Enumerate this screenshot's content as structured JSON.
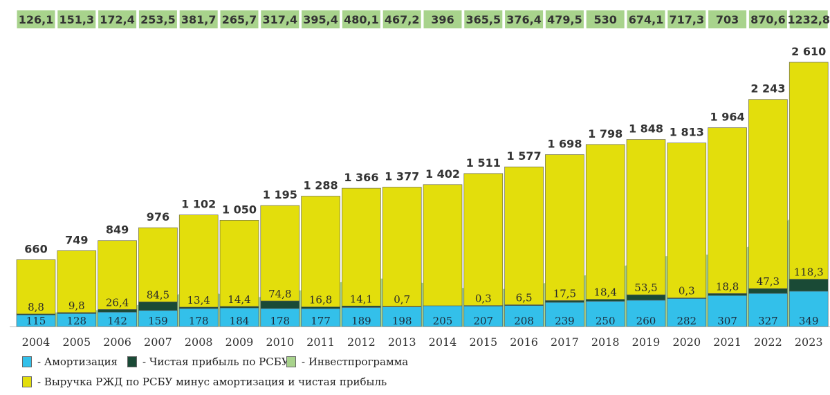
{
  "chart_data": {
    "type": "bar",
    "categories": [
      "2004",
      "2005",
      "2006",
      "2007",
      "2008",
      "2009",
      "2010",
      "2011",
      "2012",
      "2013",
      "2014",
      "2015",
      "2016",
      "2017",
      "2018",
      "2019",
      "2020",
      "2021",
      "2022",
      "2023"
    ],
    "series": [
      {
        "name": "- Амортизация",
        "stack": true,
        "color": "#33c0ea",
        "values": [
          115,
          128,
          142,
          159,
          178,
          184,
          178,
          177,
          189,
          198,
          205,
          207,
          208,
          239,
          250,
          260,
          282,
          307,
          327,
          349
        ],
        "labels": [
          "115",
          "128",
          "142",
          "159",
          "178",
          "184",
          "178",
          "177",
          "189",
          "198",
          "205",
          "207",
          "208",
          "239",
          "250",
          "260",
          "282",
          "307",
          "327",
          "349"
        ]
      },
      {
        "name": "- Чистая прибыль по РСБУ",
        "stack": true,
        "color": "#1a4a36",
        "values": [
          8.8,
          9.8,
          26.4,
          84.5,
          13.4,
          14.4,
          74.8,
          16.8,
          14.1,
          0.7,
          0,
          0.3,
          6.5,
          17.5,
          18.4,
          53.5,
          0.3,
          18.8,
          47.3,
          118.3
        ],
        "labels": [
          "8,8",
          "9,8",
          "26,4",
          "84,5",
          "13,4",
          "14,4",
          "74,8",
          "16,8",
          "14,1",
          "0,7",
          "",
          "0,3",
          "6,5",
          "17,5",
          "18,4",
          "53,5",
          "0,3",
          "18,8",
          "47,3",
          "118,3"
        ]
      },
      {
        "name": "- Выручка РЖД по РСБУ минус амортизация и чистая прибыль",
        "stack": true,
        "color": "#e3de0c",
        "values": [
          536.2,
          611.2,
          680.6,
          732.5,
          910.6,
          851.6,
          942.2,
          1094.2,
          1162.9,
          1178.3,
          1197,
          1303.7,
          1362.5,
          1441.5,
          1529.6,
          1534.5,
          1530.7,
          1638.2,
          1868.7,
          2142.7
        ]
      },
      {
        "name": "- Инвестпрограмма",
        "type": "area",
        "color": "#a8d38c",
        "values": [
          126.1,
          151.3,
          172.4,
          253.5,
          381.7,
          265.7,
          317.4,
          395.4,
          480.1,
          467.2,
          396,
          365.5,
          376.4,
          479.5,
          530,
          674.1,
          717.3,
          703,
          870.6,
          1232.8
        ],
        "labels": [
          "126,1",
          "151,3",
          "172,4",
          "253,5",
          "381,7",
          "265,7",
          "317,4",
          "395,4",
          "480,1",
          "467,2",
          "396",
          "365,5",
          "376,4",
          "479,5",
          "530",
          "674,1",
          "717,3",
          "703",
          "870,6",
          "1232,8"
        ]
      }
    ],
    "totals": [
      660,
      749,
      849,
      976,
      1102,
      1050,
      1195,
      1288,
      1366,
      1377,
      1402,
      1511,
      1577,
      1698,
      1798,
      1848,
      1813,
      1964,
      2243,
      2610
    ],
    "total_labels": [
      "660",
      "749",
      "849",
      "976",
      "1 102",
      "1 050",
      "1 195",
      "1 288",
      "1 366",
      "1 377",
      "1 402",
      "1 511",
      "1 577",
      "1 698",
      "1 798",
      "1 848",
      "1 813",
      "1 964",
      "2 243",
      "2 610"
    ],
    "ylim": [
      0,
      2610
    ],
    "grid": false,
    "title": "",
    "xlabel": "",
    "ylabel": "",
    "legend_position": "bottom-left"
  },
  "legend": {
    "amort": "- Амортизация",
    "profit": "- Чистая прибыль по РСБУ",
    "invest": "- Инвестпрограмма",
    "revenue": "- Выручка РЖД по РСБУ минус амортизация и чистая прибыль"
  }
}
